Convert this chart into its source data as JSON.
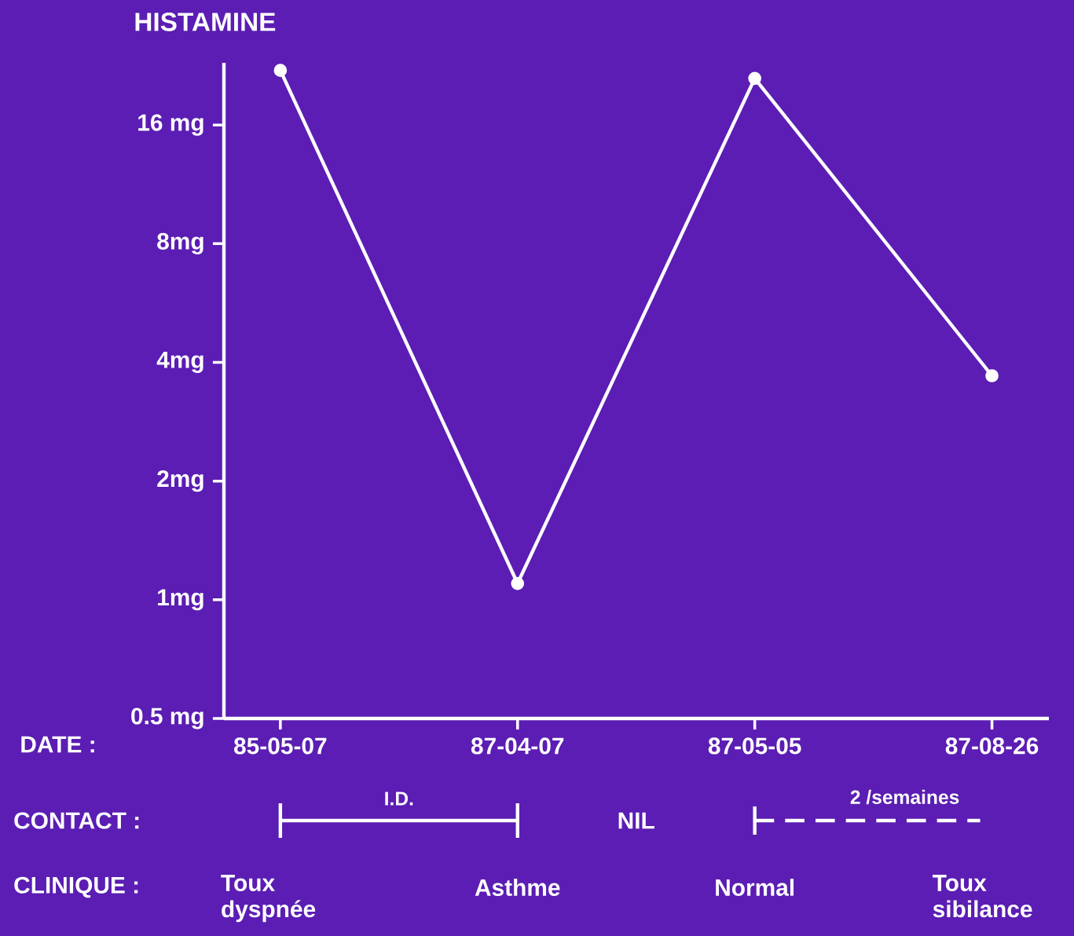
{
  "chart_data": {
    "type": "line",
    "ylabel": "HISTAMINE",
    "xlabel": "DATE :",
    "categories": [
      "85-05-07",
      "87-04-07",
      "87-05-05",
      "87-08-26"
    ],
    "series": [
      {
        "color": "#ffffff",
        "values": [
          22,
          1.1,
          21,
          3.7
        ]
      }
    ],
    "log": "y",
    "ylim": [
      0.5,
      23
    ],
    "yticks": [
      {
        "value": 0.5,
        "label": "0.5 mg"
      },
      {
        "value": 1,
        "label": "1mg"
      },
      {
        "value": 2,
        "label": "2mg"
      },
      {
        "value": 4,
        "label": "4mg"
      },
      {
        "value": 8,
        "label": "8mg"
      },
      {
        "value": 16,
        "label": "16 mg"
      }
    ],
    "marker": "circle",
    "line_style": "solid",
    "annotations": [
      "CONTACT :",
      "I.D.",
      "NIL",
      "2 /semaines",
      "CLINIQUE :",
      "Toux dyspnée",
      "Asthme",
      "Normal",
      "Toux sibilance"
    ]
  }
}
